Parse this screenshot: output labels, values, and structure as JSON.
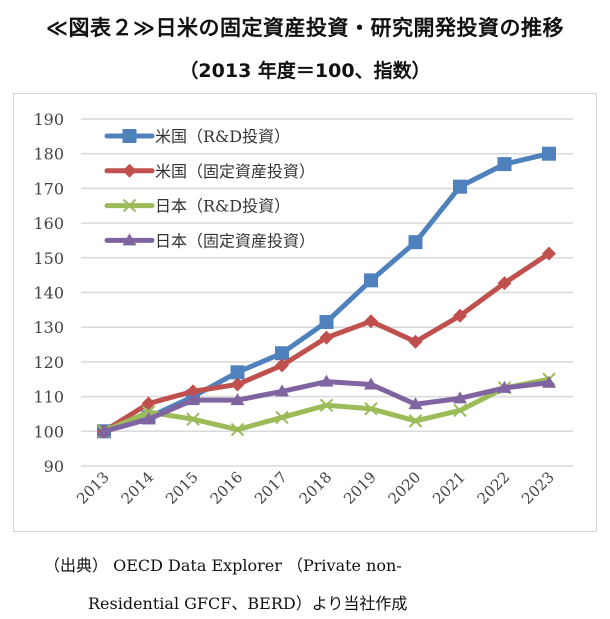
{
  "title": "≪図表２≫日米の固定資産投資・研究開発投資の推移",
  "subtitle": "（2013 年度＝100、指数）",
  "source_line1": "（出典） OECD Data Explorer （Private non-",
  "source_line2": "Residential GFCF、BERD）より当社作成",
  "chart_data": {
    "type": "line",
    "title": "≪図表２≫日米の固定資産投資・研究開発投資の推移",
    "subtitle": "（2013 年度＝100、指数）",
    "xlabel": "",
    "ylabel": "",
    "categories": [
      "2013",
      "2014",
      "2015",
      "2016",
      "2017",
      "2018",
      "2019",
      "2020",
      "2021",
      "2022",
      "2023"
    ],
    "ylim": [
      90,
      190
    ],
    "yticks": [
      90,
      100,
      110,
      120,
      130,
      140,
      150,
      160,
      170,
      180,
      190
    ],
    "grid": true,
    "legend_position": "top-left",
    "series": [
      {
        "name": "米国（R&D投資）",
        "color": "#4f81bd",
        "marker": "square",
        "values": [
          100,
          104,
          110,
          117,
          122.5,
          131.5,
          143.5,
          154.5,
          170.5,
          177,
          180
        ]
      },
      {
        "name": "米国（固定資産投資）",
        "color": "#c0504d",
        "marker": "diamond",
        "values": [
          100,
          108,
          111.5,
          113.5,
          119,
          127,
          131.7,
          125.8,
          133.3,
          142.7,
          151.2
        ]
      },
      {
        "name": "日本（R&D投資）",
        "color": "#9bbb59",
        "marker": "x",
        "values": [
          100,
          105.5,
          103.5,
          100.5,
          104,
          107.5,
          106.5,
          103,
          106,
          112.5,
          115
        ]
      },
      {
        "name": "日本（固定資産投資）",
        "color": "#8064a2",
        "marker": "triangle",
        "values": [
          100,
          103.5,
          109,
          109,
          111.5,
          114.3,
          113.5,
          107.8,
          109.5,
          112.5,
          114
        ]
      }
    ]
  }
}
